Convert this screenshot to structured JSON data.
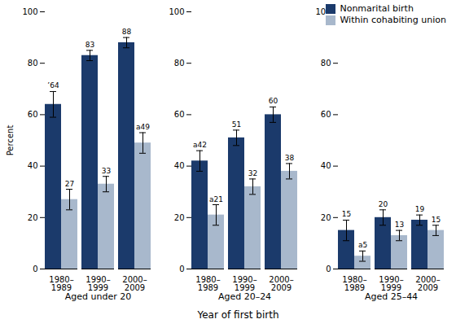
{
  "chart_data": {
    "type": "bar",
    "xlabel": "Year of first birth",
    "ylabel": "Percent",
    "ylim": [
      0,
      100
    ],
    "yticks": [
      0,
      20,
      40,
      60,
      80,
      100
    ],
    "grid": false,
    "legend": "upper right",
    "data_labels": true,
    "groups": [
      {
        "label": "Aged under 20",
        "categories": [
          "1980–\n1989",
          "1990–\n1999",
          "2000–\n2009"
        ]
      },
      {
        "label": "Aged 20–24",
        "categories": [
          "1980–\n1989",
          "1990–\n1999",
          "2000–\n2009"
        ]
      },
      {
        "label": "Aged 25–44",
        "categories": [
          "1980–\n1989",
          "1990–\n1999",
          "2000–\n2009"
        ]
      }
    ],
    "series": [
      {
        "name": "Nonmarital birth",
        "color": "#1B3A6B",
        "values": [
          64,
          83,
          88,
          42,
          51,
          60,
          15,
          20,
          19
        ],
        "errors": [
          5,
          2,
          2,
          4,
          3,
          3,
          4,
          3,
          2
        ],
        "value_labels": [
          "’64",
          "83",
          "88",
          "a42",
          "51",
          "60",
          "15",
          "20",
          "19"
        ]
      },
      {
        "name": "Within cohabiting union",
        "color": "#A8B8CC",
        "values": [
          27,
          33,
          49,
          21,
          32,
          38,
          5,
          13,
          15
        ],
        "errors": [
          4,
          3,
          4,
          4,
          3,
          3,
          2,
          2,
          2
        ],
        "value_labels": [
          "27",
          "33",
          "a49",
          "a21",
          "32",
          "38",
          "a5",
          "13",
          "15"
        ]
      }
    ]
  }
}
